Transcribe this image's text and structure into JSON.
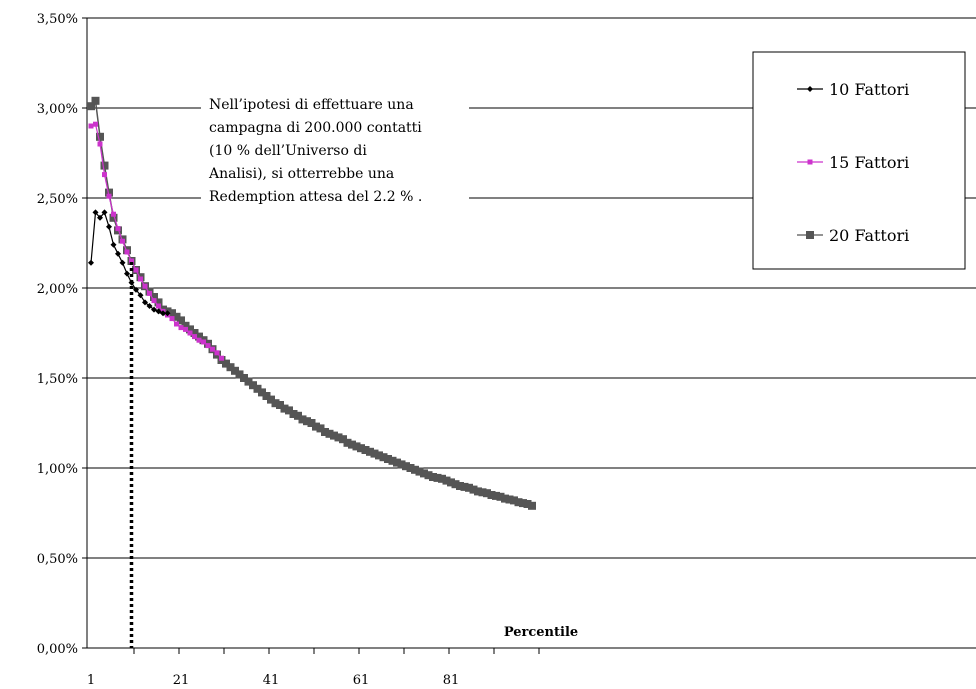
{
  "chart_data": {
    "type": "line",
    "title": "",
    "xlabel": "Percentile",
    "ylabel": "",
    "x_ticks": [
      "1",
      "21",
      "41",
      "61",
      "81"
    ],
    "y_ticks": [
      "0,00%",
      "0,50%",
      "1,00%",
      "1,50%",
      "2,00%",
      "2,50%",
      "3,00%",
      "3,50%"
    ],
    "ylim": [
      0,
      3.5
    ],
    "xlim": [
      1,
      99
    ],
    "grid": "horizontal",
    "legend_position": "right",
    "annotation": {
      "lines": [
        "Nell’ipotesi di effettuare una",
        "campagna di 200.000 contatti",
        "(10 % dell’Universo di",
        "Analisi), si otterrebbe una",
        "Redemption attesa del 2.2 % ."
      ],
      "marker_x": 10
    },
    "series": [
      {
        "name": "10 Fattori",
        "color": "#000000",
        "marker": "diamond",
        "x": [
          1,
          2,
          3,
          4,
          5,
          6,
          7,
          8,
          9,
          10,
          11,
          12,
          13,
          14,
          15,
          16,
          17,
          18
        ],
        "values": [
          2.14,
          2.42,
          2.39,
          2.42,
          2.34,
          2.24,
          2.19,
          2.14,
          2.08,
          2.03,
          1.99,
          1.96,
          1.92,
          1.9,
          1.88,
          1.87,
          1.86,
          1.86
        ]
      },
      {
        "name": "15 Fattori",
        "color": "#cc33cc",
        "marker": "square",
        "x": [
          1,
          2,
          3,
          4,
          5,
          6,
          7,
          8,
          9,
          10,
          11,
          12,
          13,
          14,
          15,
          16,
          17,
          18,
          19,
          20,
          21,
          22,
          23,
          24,
          25,
          26,
          27,
          28,
          29,
          30
        ],
        "values": [
          2.9,
          2.91,
          2.8,
          2.63,
          2.51,
          2.41,
          2.33,
          2.26,
          2.2,
          2.15,
          2.1,
          2.05,
          2.01,
          1.97,
          1.93,
          1.9,
          1.87,
          1.85,
          1.83,
          1.8,
          1.78,
          1.77,
          1.75,
          1.73,
          1.71,
          1.7,
          1.68,
          1.66,
          1.64,
          1.61
        ]
      },
      {
        "name": "20 Fattori",
        "color": "#555555",
        "marker": "square",
        "x_start": 1,
        "values": [
          3.01,
          3.04,
          2.84,
          2.68,
          2.53,
          2.39,
          2.32,
          2.27,
          2.21,
          2.15,
          2.1,
          2.06,
          2.01,
          1.98,
          1.95,
          1.92,
          1.88,
          1.87,
          1.86,
          1.84,
          1.82,
          1.79,
          1.77,
          1.75,
          1.73,
          1.71,
          1.69,
          1.66,
          1.63,
          1.6,
          1.58,
          1.56,
          1.54,
          1.52,
          1.5,
          1.48,
          1.46,
          1.44,
          1.42,
          1.4,
          1.38,
          1.36,
          1.35,
          1.33,
          1.32,
          1.3,
          1.29,
          1.27,
          1.26,
          1.25,
          1.23,
          1.22,
          1.2,
          1.19,
          1.18,
          1.17,
          1.16,
          1.14,
          1.13,
          1.12,
          1.11,
          1.1,
          1.09,
          1.08,
          1.07,
          1.06,
          1.05,
          1.04,
          1.03,
          1.02,
          1.01,
          1.0,
          0.99,
          0.98,
          0.97,
          0.96,
          0.95,
          0.945,
          0.94,
          0.93,
          0.92,
          0.91,
          0.9,
          0.895,
          0.89,
          0.88,
          0.87,
          0.865,
          0.86,
          0.85,
          0.845,
          0.84,
          0.83,
          0.825,
          0.82,
          0.81,
          0.805,
          0.8,
          0.79
        ]
      }
    ]
  }
}
